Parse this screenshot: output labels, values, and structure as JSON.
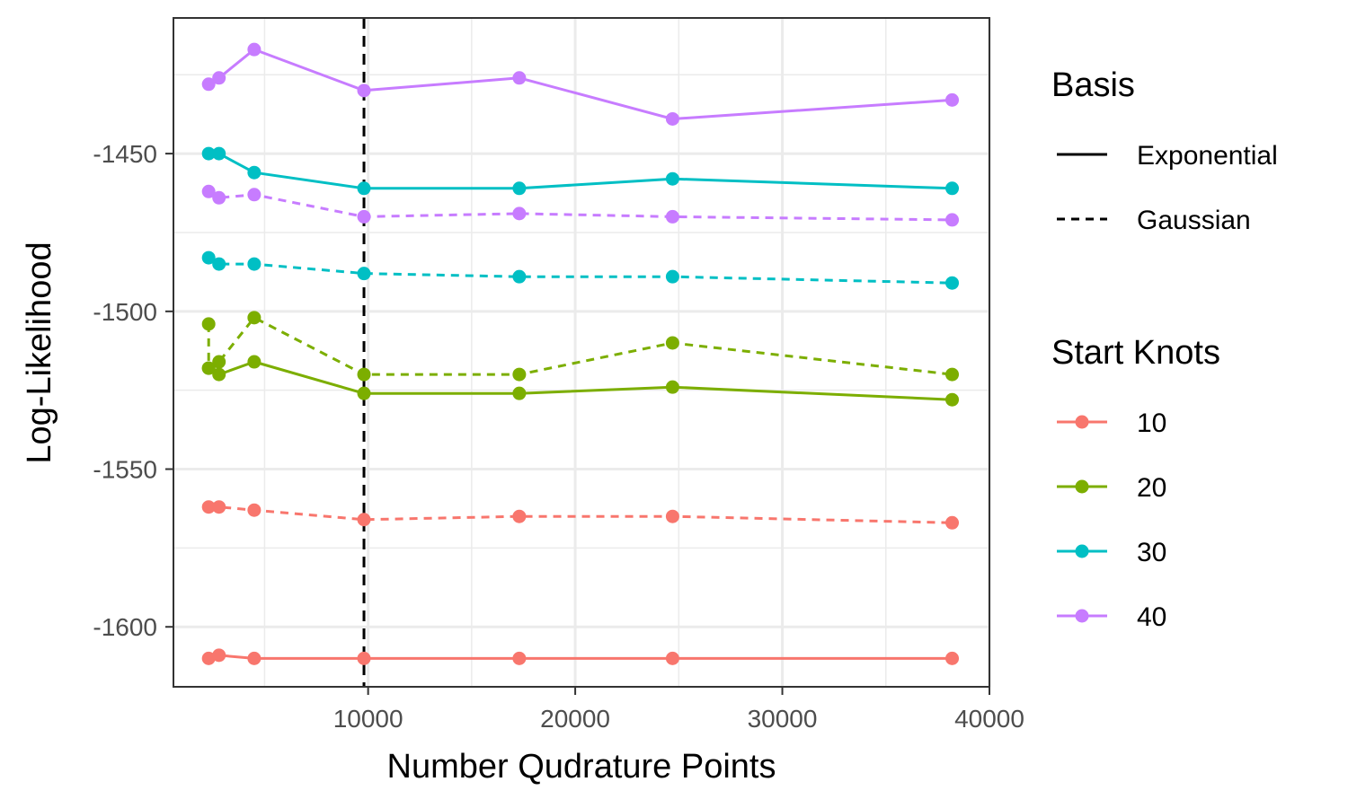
{
  "chart_data": {
    "type": "line",
    "title": "",
    "xlabel": "Number Qudrature Points",
    "ylabel": "Log-Likelihood",
    "xlim": [
      600,
      40000
    ],
    "ylim": [
      -1619,
      -1407
    ],
    "x_ticks": [
      10000,
      20000,
      30000,
      40000
    ],
    "y_ticks": [
      -1450,
      -1500,
      -1550,
      -1600
    ],
    "grid": true,
    "vline": {
      "x": 9800,
      "style": "dashed",
      "color": "#000000"
    },
    "legend_basis": {
      "title": "Basis",
      "placement": "right",
      "items": [
        {
          "label": "Exponential",
          "dash": "solid"
        },
        {
          "label": "Gaussian",
          "dash": "dashed"
        }
      ]
    },
    "legend_knots": {
      "title": "Start Knots",
      "placement": "right",
      "items": [
        {
          "label": "10",
          "color": "#F8766D"
        },
        {
          "label": "20",
          "color": "#7CAE00"
        },
        {
          "label": "30",
          "color": "#00BFC4"
        },
        {
          "label": "40",
          "color": "#C77CFF"
        }
      ]
    },
    "series": [
      {
        "knots": "40",
        "basis": "Exponential",
        "color": "#C77CFF",
        "dash": "solid",
        "x": [
          2300,
          2800,
          4500,
          9800,
          17300,
          24700,
          38200
        ],
        "y": [
          -1428,
          -1426,
          -1417,
          -1430,
          -1426,
          -1439,
          -1433
        ]
      },
      {
        "knots": "30",
        "basis": "Exponential",
        "color": "#00BFC4",
        "dash": "solid",
        "x": [
          2300,
          2800,
          4500,
          9800,
          17300,
          24700,
          38200
        ],
        "y": [
          -1450,
          -1450,
          -1456,
          -1461,
          -1461,
          -1458,
          -1461
        ]
      },
      {
        "knots": "40",
        "basis": "Gaussian",
        "color": "#C77CFF",
        "dash": "dashed",
        "x": [
          2300,
          2800,
          4500,
          9800,
          17300,
          24700,
          38200
        ],
        "y": [
          -1462,
          -1464,
          -1463,
          -1470,
          -1469,
          -1470,
          -1471
        ]
      },
      {
        "knots": "30",
        "basis": "Gaussian",
        "color": "#00BFC4",
        "dash": "dashed",
        "x": [
          2300,
          2800,
          4500,
          9800,
          17300,
          24700,
          38200
        ],
        "y": [
          -1483,
          -1485,
          -1485,
          -1488,
          -1489,
          -1489,
          -1491
        ]
      },
      {
        "knots": "20",
        "basis": "Gaussian",
        "color": "#7CAE00",
        "dash": "dashed",
        "x": [
          2300,
          2300,
          2800,
          4500,
          9800,
          17300,
          24700,
          38200
        ],
        "y": [
          -1504,
          -1518,
          -1516,
          -1502,
          -1520,
          -1520,
          -1510,
          -1520
        ]
      },
      {
        "knots": "20",
        "basis": "Exponential",
        "color": "#7CAE00",
        "dash": "solid",
        "x": [
          2300,
          2800,
          4500,
          9800,
          17300,
          24700,
          38200
        ],
        "y": [
          -1518,
          -1520,
          -1516,
          -1526,
          -1526,
          -1524,
          -1528
        ]
      },
      {
        "knots": "10",
        "basis": "Gaussian",
        "color": "#F8766D",
        "dash": "dashed",
        "x": [
          2300,
          2800,
          4500,
          9800,
          17300,
          24700,
          38200
        ],
        "y": [
          -1562,
          -1562,
          -1563,
          -1566,
          -1565,
          -1565,
          -1567
        ]
      },
      {
        "knots": "10",
        "basis": "Exponential",
        "color": "#F8766D",
        "dash": "solid",
        "x": [
          2300,
          2800,
          4500,
          9800,
          17300,
          24700,
          38200
        ],
        "y": [
          -1610,
          -1609,
          -1610,
          -1610,
          -1610,
          -1610,
          -1610
        ]
      }
    ]
  }
}
